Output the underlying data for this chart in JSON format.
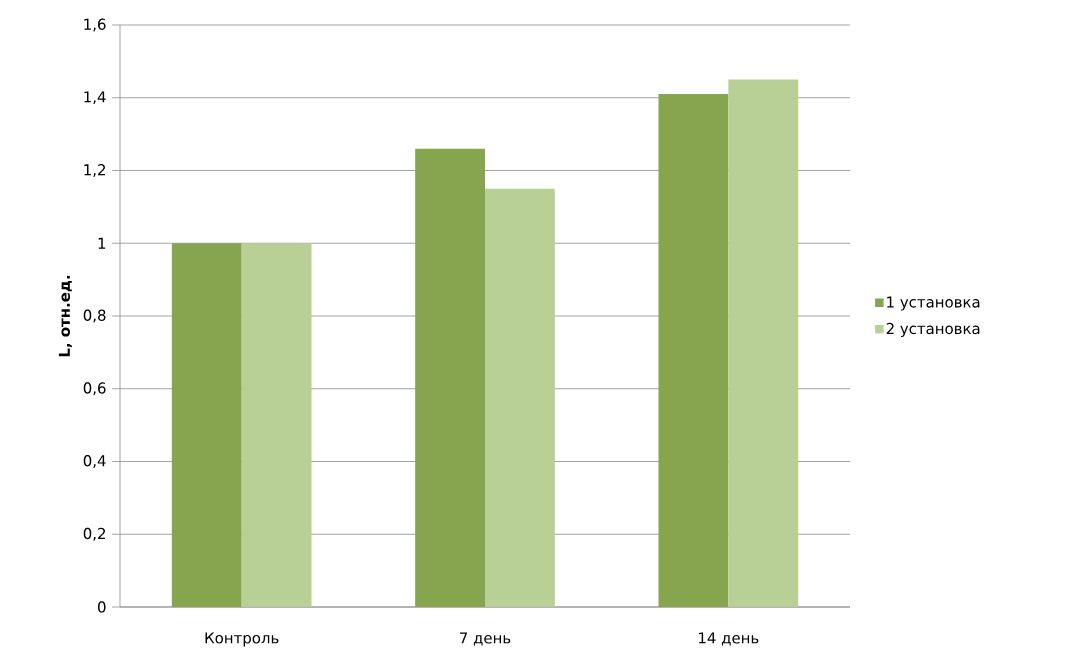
{
  "chart_data": {
    "type": "bar",
    "ylabel": "L, отн.ед.",
    "categories": [
      "Контроль",
      "7 день",
      "14 день"
    ],
    "series": [
      {
        "name": "1 установка",
        "color": "#87a54f",
        "values": [
          1.0,
          1.26,
          1.41
        ]
      },
      {
        "name": "2 установка",
        "color": "#b8cf95",
        "values": [
          1.0,
          1.15,
          1.45
        ]
      }
    ],
    "ylim": [
      0,
      1.6
    ],
    "yticks": [
      0,
      {
        "value": 0.2,
        "label": "0,2"
      },
      {
        "value": 0.4,
        "label": "0,4"
      },
      {
        "value": 0.6,
        "label": "0,6"
      },
      {
        "value": 0.8,
        "label": "0,8"
      },
      1,
      {
        "value": 1.2,
        "label": "1,2"
      },
      {
        "value": 1.4,
        "label": "1,4"
      },
      {
        "value": 1.6,
        "label": "1,6"
      }
    ],
    "grid": "y",
    "legend": "right"
  }
}
